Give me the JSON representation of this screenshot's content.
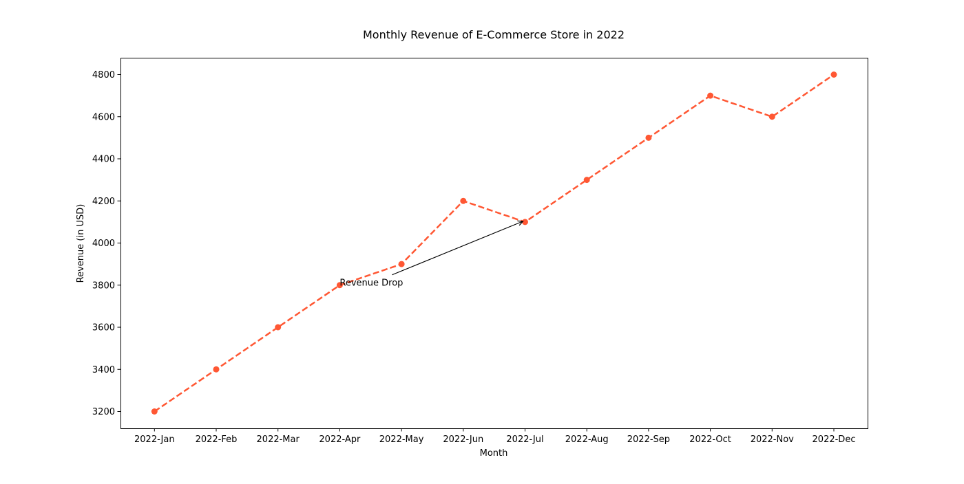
{
  "chart_data": {
    "type": "line",
    "title": "Monthly Revenue of E-Commerce Store in 2022",
    "xlabel": "Month",
    "ylabel": "Revenue (in USD)",
    "categories": [
      "2022-Jan",
      "2022-Feb",
      "2022-Mar",
      "2022-Apr",
      "2022-May",
      "2022-Jun",
      "2022-Jul",
      "2022-Aug",
      "2022-Sep",
      "2022-Oct",
      "2022-Nov",
      "2022-Dec"
    ],
    "series": [
      {
        "values": [
          3200,
          3400,
          3600,
          3800,
          3900,
          4200,
          4100,
          4300,
          4500,
          4700,
          4600,
          4800
        ],
        "color": "#FF5733",
        "line_style": "dashed",
        "marker": "circle"
      }
    ],
    "ylim": [
      3120,
      4880
    ],
    "yticks": [
      3200,
      3400,
      3600,
      3800,
      4000,
      4200,
      4400,
      4600,
      4800
    ],
    "grid": false,
    "annotations": [
      {
        "text": "Revenue Drop",
        "text_x": "2022-Apr",
        "text_y": 3800,
        "point_x": "2022-Jul",
        "point_y": 4100
      }
    ]
  }
}
